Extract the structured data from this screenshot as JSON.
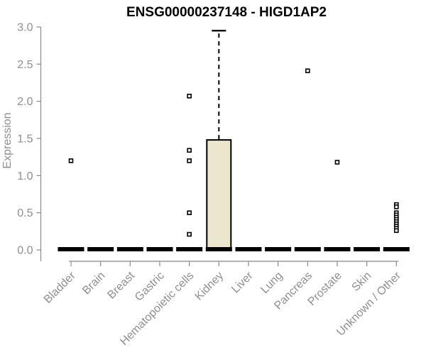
{
  "chart_data": {
    "type": "boxplot",
    "title": "ENSG00000237148 - HIGD1AP2",
    "xlabel": "",
    "ylabel": "Expression",
    "ylim": [
      0.0,
      3.0
    ],
    "yticks": [
      0.0,
      0.5,
      1.0,
      1.5,
      2.0,
      2.5,
      3.0
    ],
    "grid": false,
    "legend": false,
    "categories": [
      "Bladder",
      "Brain",
      "Breast",
      "Gastric",
      "Hematopoietic cells",
      "Kidney",
      "Liver",
      "Lung",
      "Pancreas",
      "Prostate",
      "Skin",
      "Unknown / Other"
    ],
    "boxes": [
      {
        "category": "Bladder",
        "q1": 0,
        "median": 0,
        "q3": 0,
        "whisker_low": 0,
        "whisker_high": 0,
        "outliers": [
          1.2
        ]
      },
      {
        "category": "Brain",
        "q1": 0,
        "median": 0,
        "q3": 0,
        "whisker_low": 0,
        "whisker_high": 0,
        "outliers": []
      },
      {
        "category": "Breast",
        "q1": 0,
        "median": 0,
        "q3": 0,
        "whisker_low": 0,
        "whisker_high": 0,
        "outliers": []
      },
      {
        "category": "Gastric",
        "q1": 0,
        "median": 0,
        "q3": 0,
        "whisker_low": 0,
        "whisker_high": 0,
        "outliers": []
      },
      {
        "category": "Hematopoietic cells",
        "q1": 0,
        "median": 0,
        "q3": 0,
        "whisker_low": 0,
        "whisker_high": 0,
        "outliers": [
          2.07,
          1.34,
          1.2,
          0.5,
          0.21
        ]
      },
      {
        "category": "Kidney",
        "q1": 0,
        "median": 0,
        "q3": 1.48,
        "whisker_low": 0,
        "whisker_high": 2.95,
        "outliers": []
      },
      {
        "category": "Liver",
        "q1": 0,
        "median": 0,
        "q3": 0,
        "whisker_low": 0,
        "whisker_high": 0,
        "outliers": []
      },
      {
        "category": "Lung",
        "q1": 0,
        "median": 0,
        "q3": 0,
        "whisker_low": 0,
        "whisker_high": 0,
        "outliers": []
      },
      {
        "category": "Pancreas",
        "q1": 0,
        "median": 0,
        "q3": 0,
        "whisker_low": 0,
        "whisker_high": 0,
        "outliers": [
          2.41
        ]
      },
      {
        "category": "Prostate",
        "q1": 0,
        "median": 0,
        "q3": 0,
        "whisker_low": 0,
        "whisker_high": 0,
        "outliers": [
          1.18
        ]
      },
      {
        "category": "Skin",
        "q1": 0,
        "median": 0,
        "q3": 0,
        "whisker_low": 0,
        "whisker_high": 0,
        "outliers": []
      },
      {
        "category": "Unknown / Other",
        "q1": 0,
        "median": 0,
        "q3": 0,
        "whisker_low": 0,
        "whisker_high": 0,
        "outliers": [
          0.61,
          0.58,
          0.5,
          0.47,
          0.44,
          0.41,
          0.38,
          0.35,
          0.32,
          0.29,
          0.26
        ]
      }
    ],
    "colors": {
      "box_fill": "#ece7cc",
      "box_stroke": "#000000",
      "median": "#000000",
      "whisker": "#000000",
      "outlier_fill": "#ffffff",
      "outlier_stroke": "#000000",
      "axis_line": "#8b8b8b",
      "tick_label": "#8f8f8f",
      "title": "#000000",
      "background": "#ffffff"
    }
  }
}
